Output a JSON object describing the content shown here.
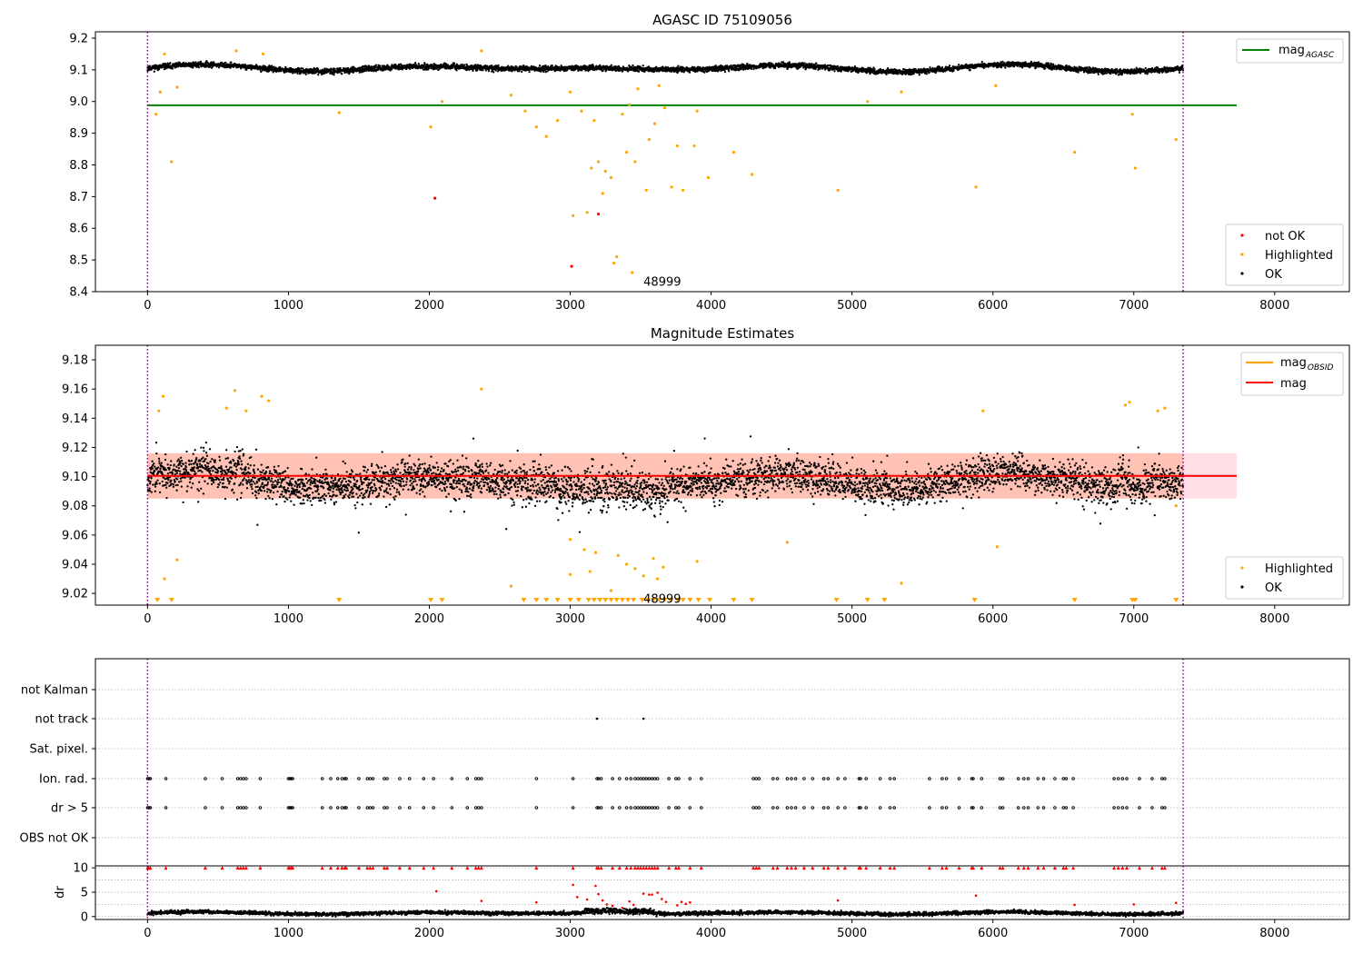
{
  "figure": {
    "title": "AGASC ID 75109056"
  },
  "colors": {
    "ok": "#000000",
    "highlighted": "#ffa500",
    "not_ok": "#ff0000",
    "agasc_line": "#008000",
    "mag_line": "#ff0000",
    "mag_obsid": "#ffa500",
    "band_outer": "#ffc0cb",
    "band_inner": "#ffa07a",
    "obs_boundary": "#800080"
  },
  "chart_data": [
    {
      "type": "scatter",
      "title": "AGASC ID 75109056",
      "xlabel": "",
      "ylabel": "",
      "xlim": [
        -370,
        8530
      ],
      "ylim": [
        8.4,
        9.22
      ],
      "xticks": [
        "0",
        "1000",
        "2000",
        "3000",
        "4000",
        "5000",
        "6000",
        "7000",
        "8000"
      ],
      "yticks": [
        "8.4",
        "8.5",
        "8.6",
        "8.7",
        "8.8",
        "8.9",
        "9.0",
        "9.1",
        "9.2"
      ],
      "grid": false,
      "mag_agasc": 8.988,
      "obs_boundaries": [
        0,
        7350
      ],
      "obsid_label": {
        "text": "48999",
        "x": 3520,
        "y": 8.43
      },
      "legend_lines": [
        {
          "label": "mag",
          "sub": "AGASC",
          "color": "#008000"
        }
      ],
      "legend_points": [
        {
          "label": "not OK",
          "color": "#ff0000"
        },
        {
          "label": "Highlighted",
          "color": "#ffa500"
        },
        {
          "label": "OK",
          "color": "#000000"
        }
      ],
      "ok_band": {
        "x_range": [
          0,
          7350
        ],
        "base": 9.105,
        "amplitude": 0.012,
        "noise": 0.008
      },
      "highlighted_points": [
        [
          60,
          8.96
        ],
        [
          90,
          9.03
        ],
        [
          120,
          9.15
        ],
        [
          170,
          8.81
        ],
        [
          210,
          9.045
        ],
        [
          630,
          9.16
        ],
        [
          820,
          9.15
        ],
        [
          1360,
          8.965
        ],
        [
          2010,
          8.92
        ],
        [
          2090,
          9.0
        ],
        [
          2370,
          9.16
        ],
        [
          2580,
          9.02
        ],
        [
          2680,
          8.97
        ],
        [
          2760,
          8.92
        ],
        [
          2830,
          8.89
        ],
        [
          2910,
          8.94
        ],
        [
          3000,
          9.03
        ],
        [
          3020,
          8.64
        ],
        [
          3080,
          8.97
        ],
        [
          3120,
          8.65
        ],
        [
          3150,
          8.79
        ],
        [
          3170,
          8.94
        ],
        [
          3200,
          8.81
        ],
        [
          3230,
          8.71
        ],
        [
          3250,
          8.78
        ],
        [
          3290,
          8.76
        ],
        [
          3310,
          8.49
        ],
        [
          3330,
          8.51
        ],
        [
          3370,
          8.96
        ],
        [
          3400,
          8.84
        ],
        [
          3420,
          8.99
        ],
        [
          3440,
          8.46
        ],
        [
          3460,
          8.81
        ],
        [
          3480,
          9.04
        ],
        [
          3540,
          8.72
        ],
        [
          3560,
          8.88
        ],
        [
          3600,
          8.93
        ],
        [
          3630,
          9.05
        ],
        [
          3670,
          8.98
        ],
        [
          3720,
          8.73
        ],
        [
          3760,
          8.86
        ],
        [
          3800,
          8.72
        ],
        [
          3880,
          8.86
        ],
        [
          3900,
          8.97
        ],
        [
          3980,
          8.76
        ],
        [
          4160,
          8.84
        ],
        [
          4290,
          8.77
        ],
        [
          4900,
          8.72
        ],
        [
          5110,
          9.0
        ],
        [
          5350,
          9.03
        ],
        [
          5880,
          8.73
        ],
        [
          6020,
          9.05
        ],
        [
          6580,
          8.84
        ],
        [
          6990,
          8.96
        ],
        [
          7010,
          8.79
        ],
        [
          7300,
          8.88
        ]
      ],
      "not_ok_points": [
        [
          2040,
          8.695
        ],
        [
          3010,
          8.48
        ],
        [
          3200,
          8.645
        ]
      ]
    },
    {
      "type": "scatter",
      "title": "Magnitude Estimates",
      "xlabel": "",
      "ylabel": "",
      "xlim": [
        -370,
        8530
      ],
      "ylim": [
        9.012,
        9.19
      ],
      "xticks": [
        "0",
        "1000",
        "2000",
        "3000",
        "4000",
        "5000",
        "6000",
        "7000",
        "8000"
      ],
      "yticks": [
        "9.02",
        "9.04",
        "9.06",
        "9.08",
        "9.10",
        "9.12",
        "9.14",
        "9.16",
        "9.18"
      ],
      "grid": false,
      "mag": 9.1005,
      "band": [
        9.085,
        9.116
      ],
      "obs_boundaries": [
        0,
        7350
      ],
      "obsid_label": {
        "text": "48999",
        "x": 3520,
        "y": 9.016
      },
      "legend_lines": [
        {
          "label": "mag",
          "sub": "OBSID",
          "color": "#ffa500"
        },
        {
          "label": "mag",
          "sub": "",
          "color": "#ff0000"
        }
      ],
      "legend_points": [
        {
          "label": "Highlighted",
          "color": "#ffa500"
        },
        {
          "label": "OK",
          "color": "#000000"
        }
      ],
      "ok_band": {
        "x_range": [
          0,
          7350
        ],
        "base": 9.097,
        "amplitude": 0.006,
        "noise": 0.011
      },
      "highlighted_points": [
        [
          80,
          9.145
        ],
        [
          110,
          9.155
        ],
        [
          120,
          9.03
        ],
        [
          210,
          9.043
        ],
        [
          560,
          9.147
        ],
        [
          620,
          9.159
        ],
        [
          700,
          9.145
        ],
        [
          810,
          9.155
        ],
        [
          860,
          9.152
        ],
        [
          2370,
          9.16
        ],
        [
          2580,
          9.025
        ],
        [
          3000,
          9.057
        ],
        [
          3000,
          9.033
        ],
        [
          3100,
          9.05
        ],
        [
          3140,
          9.035
        ],
        [
          3180,
          9.048
        ],
        [
          3290,
          9.022
        ],
        [
          3340,
          9.046
        ],
        [
          3400,
          9.04
        ],
        [
          3460,
          9.037
        ],
        [
          3520,
          9.032
        ],
        [
          3590,
          9.044
        ],
        [
          3620,
          9.03
        ],
        [
          3660,
          9.038
        ],
        [
          3900,
          9.042
        ],
        [
          4540,
          9.055
        ],
        [
          5350,
          9.027
        ],
        [
          5930,
          9.145
        ],
        [
          6030,
          9.052
        ],
        [
          6940,
          9.149
        ],
        [
          6970,
          9.151
        ],
        [
          7170,
          9.145
        ],
        [
          7220,
          9.147
        ],
        [
          7300,
          9.08
        ]
      ],
      "low_markers_x": [
        70,
        170,
        1360,
        2010,
        2090,
        2670,
        2760,
        2830,
        2910,
        3000,
        3060,
        3130,
        3170,
        3210,
        3250,
        3290,
        3330,
        3370,
        3410,
        3450,
        3510,
        3550,
        3590,
        3630,
        3670,
        3710,
        3760,
        3800,
        3850,
        3910,
        3990,
        4160,
        4290,
        4890,
        5110,
        5230,
        5870,
        6580,
        6990,
        7010,
        7300
      ]
    },
    {
      "type": "scatter",
      "title": "",
      "xlabel": "",
      "ylabel": "",
      "xlim": [
        -370,
        8530
      ],
      "categories": [
        "not Kalman",
        "not track",
        "Sat. pixel.",
        "Ion. rad.",
        "dr > 5",
        "OBS not OK"
      ],
      "xticks": [
        "0",
        "1000",
        "2000",
        "3000",
        "4000",
        "5000",
        "6000",
        "7000",
        "8000"
      ],
      "grid": true,
      "obs_boundaries": [
        0,
        7350
      ],
      "not_track_x": [
        3190,
        3520
      ],
      "flag_x": [
        0,
        10,
        20,
        130,
        410,
        530,
        640,
        660,
        680,
        700,
        800,
        1000,
        1010,
        1020,
        1030,
        1240,
        1300,
        1350,
        1380,
        1400,
        1410,
        1500,
        1560,
        1580,
        1600,
        1680,
        1700,
        1790,
        1860,
        1960,
        2030,
        2160,
        2270,
        2330,
        2350,
        2370,
        2760,
        3020,
        3190,
        3200,
        3220,
        3300,
        3350,
        3400,
        3430,
        3460,
        3480,
        3500,
        3520,
        3540,
        3560,
        3580,
        3600,
        3620,
        3700,
        3750,
        3770,
        3850,
        3930,
        4300,
        4320,
        4340,
        4440,
        4470,
        4540,
        4570,
        4600,
        4660,
        4720,
        4800,
        4830,
        4900,
        4950,
        5050,
        5060,
        5100,
        5200,
        5270,
        5300,
        5550,
        5640,
        5670,
        5760,
        5850,
        5860,
        5920,
        6050,
        6070,
        6180,
        6220,
        6250,
        6320,
        6360,
        6440,
        6500,
        6520,
        6570,
        6860,
        6890,
        6920,
        6950,
        7040,
        7130,
        7200,
        7220
      ]
    },
    {
      "type": "scatter",
      "title": "",
      "xlabel": "",
      "ylabel": "dr",
      "xlim": [
        -370,
        8530
      ],
      "ylim": [
        -0.6,
        10.4
      ],
      "yticks": [
        "0",
        "5",
        "10"
      ],
      "xticks": [
        "0",
        "1000",
        "2000",
        "3000",
        "4000",
        "5000",
        "6000",
        "7000",
        "8000"
      ],
      "grid": true,
      "obs_boundaries": [
        0,
        7350
      ],
      "cap_level": 10,
      "ok_band": {
        "x_range": [
          0,
          7350
        ],
        "base": 0.7,
        "amplitude": 0.25,
        "noise": 0.35
      },
      "red_points": [
        [
          2050,
          5.2
        ],
        [
          2370,
          3.2
        ],
        [
          2760,
          2.9
        ],
        [
          3020,
          6.5
        ],
        [
          3050,
          4.0
        ],
        [
          3120,
          3.5
        ],
        [
          3180,
          6.3
        ],
        [
          3200,
          4.6
        ],
        [
          3230,
          3.3
        ],
        [
          3260,
          2.5
        ],
        [
          3300,
          2.2
        ],
        [
          3370,
          1.8
        ],
        [
          3420,
          3.1
        ],
        [
          3450,
          2.4
        ],
        [
          3520,
          4.7
        ],
        [
          3560,
          4.5
        ],
        [
          3580,
          4.5
        ],
        [
          3620,
          4.9
        ],
        [
          3650,
          3.6
        ],
        [
          3680,
          3.0
        ],
        [
          3760,
          2.3
        ],
        [
          3790,
          3.0
        ],
        [
          3820,
          2.6
        ],
        [
          3850,
          2.9
        ],
        [
          4900,
          3.3
        ],
        [
          5880,
          4.3
        ],
        [
          6580,
          2.4
        ],
        [
          7000,
          2.5
        ],
        [
          7300,
          2.8
        ]
      ]
    }
  ]
}
